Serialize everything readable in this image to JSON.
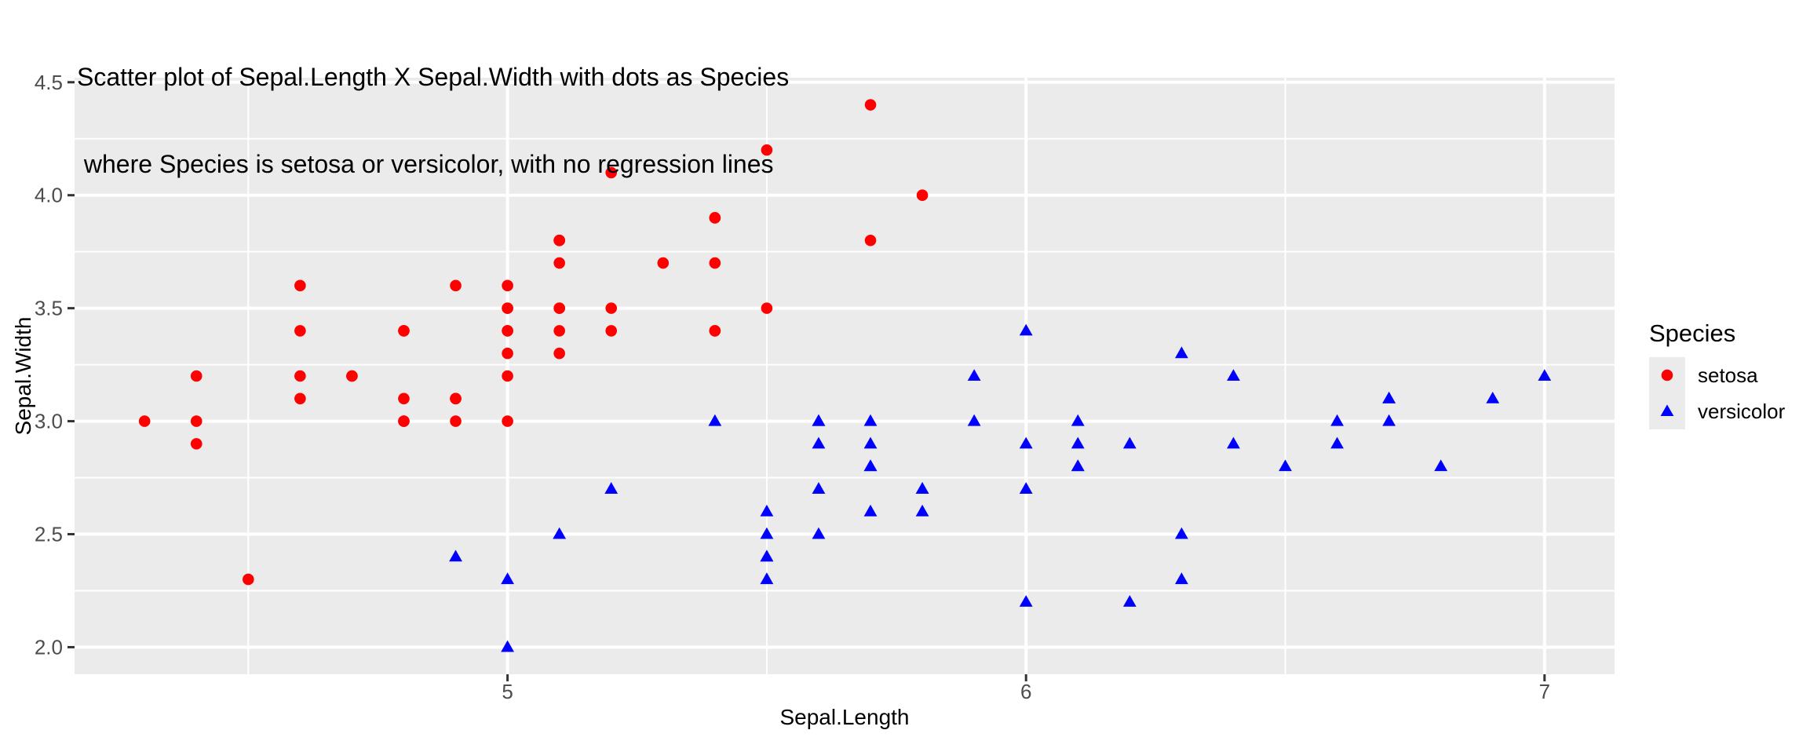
{
  "figure": {
    "background": "#FFFFFF"
  },
  "chart_data": {
    "type": "scatter",
    "title_lines": [
      "Scatter plot of Sepal.Length X Sepal.Width with dots as Species",
      " where Species is setosa or versicolor, with no regression lines"
    ],
    "xlabel": "Sepal.Length",
    "ylabel": "Sepal.Width",
    "xlim": [
      4.165,
      7.135
    ],
    "ylim": [
      1.88,
      4.52
    ],
    "x_ticks": [
      5,
      6,
      7
    ],
    "x_tick_labels": [
      "5",
      "6",
      "7"
    ],
    "y_ticks": [
      2.0,
      2.5,
      3.0,
      3.5,
      4.0,
      4.5
    ],
    "y_tick_labels": [
      "2.0",
      "2.5",
      "3.0",
      "3.5",
      "4.0",
      "4.5"
    ],
    "x_minor_ticks": [
      4.5,
      5.5,
      6.5
    ],
    "y_minor_ticks": [
      2.25,
      2.75,
      3.25,
      3.75,
      4.25
    ],
    "grid": "on",
    "panel_background": "#EBEBEB",
    "grid_color": "#FFFFFF",
    "tick_mark_color": "#333333",
    "tick_label_color": "#4D4D4D",
    "legend": {
      "position": "right",
      "title": "Species",
      "entries": [
        {
          "label": "setosa",
          "color": "#FF0000",
          "shape": "circle"
        },
        {
          "label": "versicolor",
          "color": "#0000FF",
          "shape": "triangle"
        }
      ]
    },
    "series": [
      {
        "name": "setosa",
        "shape": "circle",
        "color": "#FF0000",
        "points": [
          [
            5.1,
            3.5
          ],
          [
            4.9,
            3.0
          ],
          [
            4.7,
            3.2
          ],
          [
            4.6,
            3.1
          ],
          [
            5.0,
            3.6
          ],
          [
            5.4,
            3.9
          ],
          [
            4.6,
            3.4
          ],
          [
            5.0,
            3.4
          ],
          [
            4.4,
            2.9
          ],
          [
            4.9,
            3.1
          ],
          [
            5.4,
            3.7
          ],
          [
            4.8,
            3.4
          ],
          [
            4.8,
            3.0
          ],
          [
            4.3,
            3.0
          ],
          [
            5.8,
            4.0
          ],
          [
            5.7,
            4.4
          ],
          [
            5.4,
            3.9
          ],
          [
            5.1,
            3.5
          ],
          [
            5.7,
            3.8
          ],
          [
            5.1,
            3.8
          ],
          [
            5.4,
            3.4
          ],
          [
            5.1,
            3.7
          ],
          [
            4.6,
            3.6
          ],
          [
            5.1,
            3.3
          ],
          [
            4.8,
            3.4
          ],
          [
            5.0,
            3.0
          ],
          [
            5.0,
            3.4
          ],
          [
            5.2,
            3.5
          ],
          [
            5.2,
            3.4
          ],
          [
            4.7,
            3.2
          ],
          [
            4.8,
            3.1
          ],
          [
            5.4,
            3.4
          ],
          [
            5.2,
            4.1
          ],
          [
            5.5,
            4.2
          ],
          [
            4.9,
            3.1
          ],
          [
            5.0,
            3.2
          ],
          [
            5.5,
            3.5
          ],
          [
            4.9,
            3.6
          ],
          [
            4.4,
            3.0
          ],
          [
            5.1,
            3.4
          ],
          [
            5.0,
            3.5
          ],
          [
            4.5,
            2.3
          ],
          [
            4.4,
            3.2
          ],
          [
            5.0,
            3.5
          ],
          [
            5.1,
            3.8
          ],
          [
            4.8,
            3.0
          ],
          [
            5.1,
            3.8
          ],
          [
            4.6,
            3.2
          ],
          [
            5.3,
            3.7
          ],
          [
            5.0,
            3.3
          ]
        ]
      },
      {
        "name": "versicolor",
        "shape": "triangle",
        "color": "#0000FF",
        "points": [
          [
            7.0,
            3.2
          ],
          [
            6.4,
            3.2
          ],
          [
            6.9,
            3.1
          ],
          [
            5.5,
            2.3
          ],
          [
            6.5,
            2.8
          ],
          [
            5.7,
            2.8
          ],
          [
            6.3,
            3.3
          ],
          [
            4.9,
            2.4
          ],
          [
            6.6,
            2.9
          ],
          [
            5.2,
            2.7
          ],
          [
            5.0,
            2.0
          ],
          [
            5.9,
            3.0
          ],
          [
            6.0,
            2.2
          ],
          [
            6.1,
            2.9
          ],
          [
            5.6,
            2.9
          ],
          [
            6.7,
            3.1
          ],
          [
            5.6,
            3.0
          ],
          [
            5.8,
            2.7
          ],
          [
            6.2,
            2.2
          ],
          [
            5.6,
            2.5
          ],
          [
            5.9,
            3.2
          ],
          [
            6.1,
            2.8
          ],
          [
            6.3,
            2.5
          ],
          [
            6.1,
            2.8
          ],
          [
            6.4,
            2.9
          ],
          [
            6.6,
            3.0
          ],
          [
            6.8,
            2.8
          ],
          [
            6.7,
            3.0
          ],
          [
            6.0,
            2.9
          ],
          [
            5.7,
            2.6
          ],
          [
            5.5,
            2.4
          ],
          [
            5.5,
            2.4
          ],
          [
            5.8,
            2.7
          ],
          [
            6.0,
            2.7
          ],
          [
            5.4,
            3.0
          ],
          [
            6.0,
            3.4
          ],
          [
            6.7,
            3.1
          ],
          [
            6.3,
            2.3
          ],
          [
            5.6,
            3.0
          ],
          [
            5.5,
            2.5
          ],
          [
            5.5,
            2.6
          ],
          [
            6.1,
            3.0
          ],
          [
            5.8,
            2.6
          ],
          [
            5.0,
            2.3
          ],
          [
            5.6,
            2.7
          ],
          [
            5.7,
            3.0
          ],
          [
            5.7,
            2.9
          ],
          [
            6.2,
            2.9
          ],
          [
            5.1,
            2.5
          ],
          [
            5.7,
            2.8
          ]
        ]
      }
    ]
  }
}
